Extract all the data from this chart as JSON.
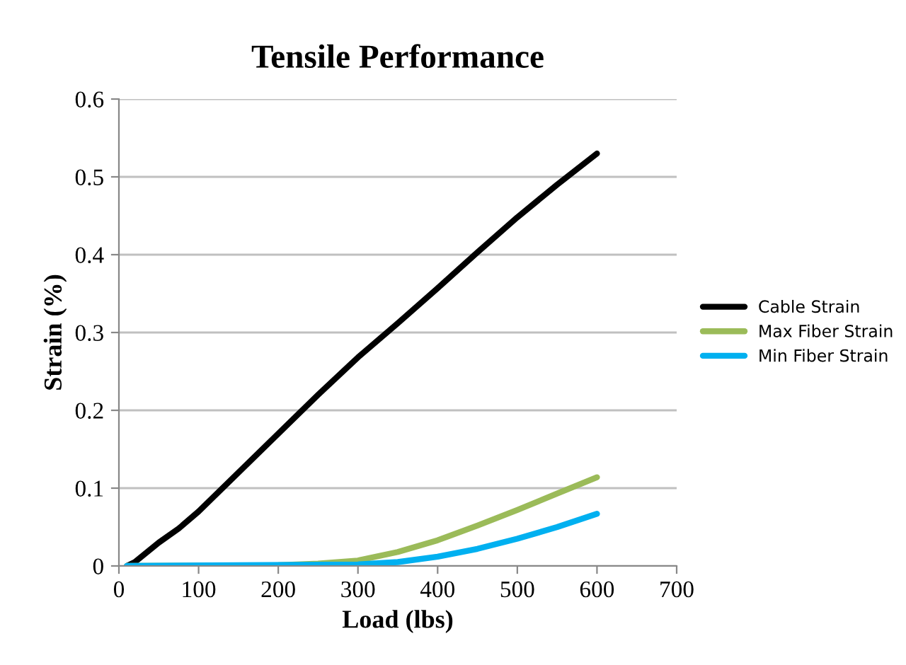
{
  "chart_data": {
    "type": "line",
    "title": "Tensile Performance",
    "xlabel": "Load (lbs)",
    "ylabel": "Strain (%)",
    "xlim": [
      0,
      700
    ],
    "xticks": [
      0,
      100,
      200,
      300,
      400,
      500,
      600,
      700
    ],
    "ylim": [
      0,
      0.6
    ],
    "yticks": [
      0,
      0.1,
      0.2,
      0.3,
      0.4,
      0.5,
      0.6
    ],
    "grid": "y",
    "legend": "right",
    "marker": "none",
    "line_style": "solid",
    "series": [
      {
        "name": "Cable Strain",
        "color": "#000000",
        "x": [
          10,
          20,
          50,
          75,
          100,
          150,
          200,
          250,
          300,
          350,
          400,
          450,
          500,
          550,
          600
        ],
        "values": [
          0,
          0.005,
          0.03,
          0.048,
          0.07,
          0.12,
          0.17,
          0.22,
          0.268,
          0.312,
          0.357,
          0.403,
          0.448,
          0.49,
          0.53
        ]
      },
      {
        "name": "Max Fiber Strain",
        "color": "#9bbb59",
        "x": [
          10,
          200,
          250,
          300,
          350,
          400,
          450,
          500,
          550,
          600
        ],
        "values": [
          0,
          0.001,
          0.003,
          0.007,
          0.018,
          0.033,
          0.052,
          0.072,
          0.093,
          0.114
        ]
      },
      {
        "name": "Min Fiber Strain",
        "color": "#00b0f0",
        "x": [
          10,
          300,
          350,
          400,
          450,
          500,
          550,
          600
        ],
        "values": [
          0,
          0.002,
          0.005,
          0.012,
          0.022,
          0.035,
          0.05,
          0.067
        ]
      }
    ]
  }
}
